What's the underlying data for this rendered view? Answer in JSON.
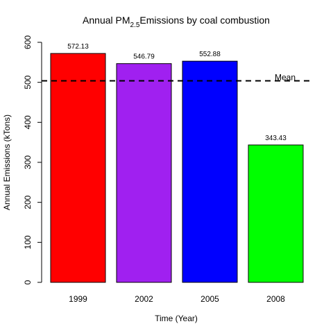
{
  "chart_data": {
    "type": "bar",
    "title": {
      "prefix": "Annual PM",
      "sub": "2.5",
      "suffix": "Emissions by coal combustion"
    },
    "xlabel": "Time (Year)",
    "ylabel": "Annual Emissions (kTons)",
    "categories": [
      "1999",
      "2002",
      "2005",
      "2008"
    ],
    "values": [
      572.13,
      546.79,
      552.88,
      343.43
    ],
    "data_labels": [
      "572.13",
      "546.79",
      "552.88",
      "343.43"
    ],
    "colors": [
      "#ff0000",
      "#a020f0",
      "#0000ff",
      "#00ff00"
    ],
    "ylim": [
      0,
      600
    ],
    "yticks": [
      0,
      100,
      200,
      300,
      400,
      500,
      600
    ],
    "ytick_labels": [
      "0",
      "100",
      "200",
      "300",
      "400",
      "500",
      "600"
    ],
    "mean_line": {
      "value": 503.8,
      "label": "Mean",
      "style": "dashed",
      "color": "#000000"
    },
    "grid": false,
    "legend": "none"
  }
}
